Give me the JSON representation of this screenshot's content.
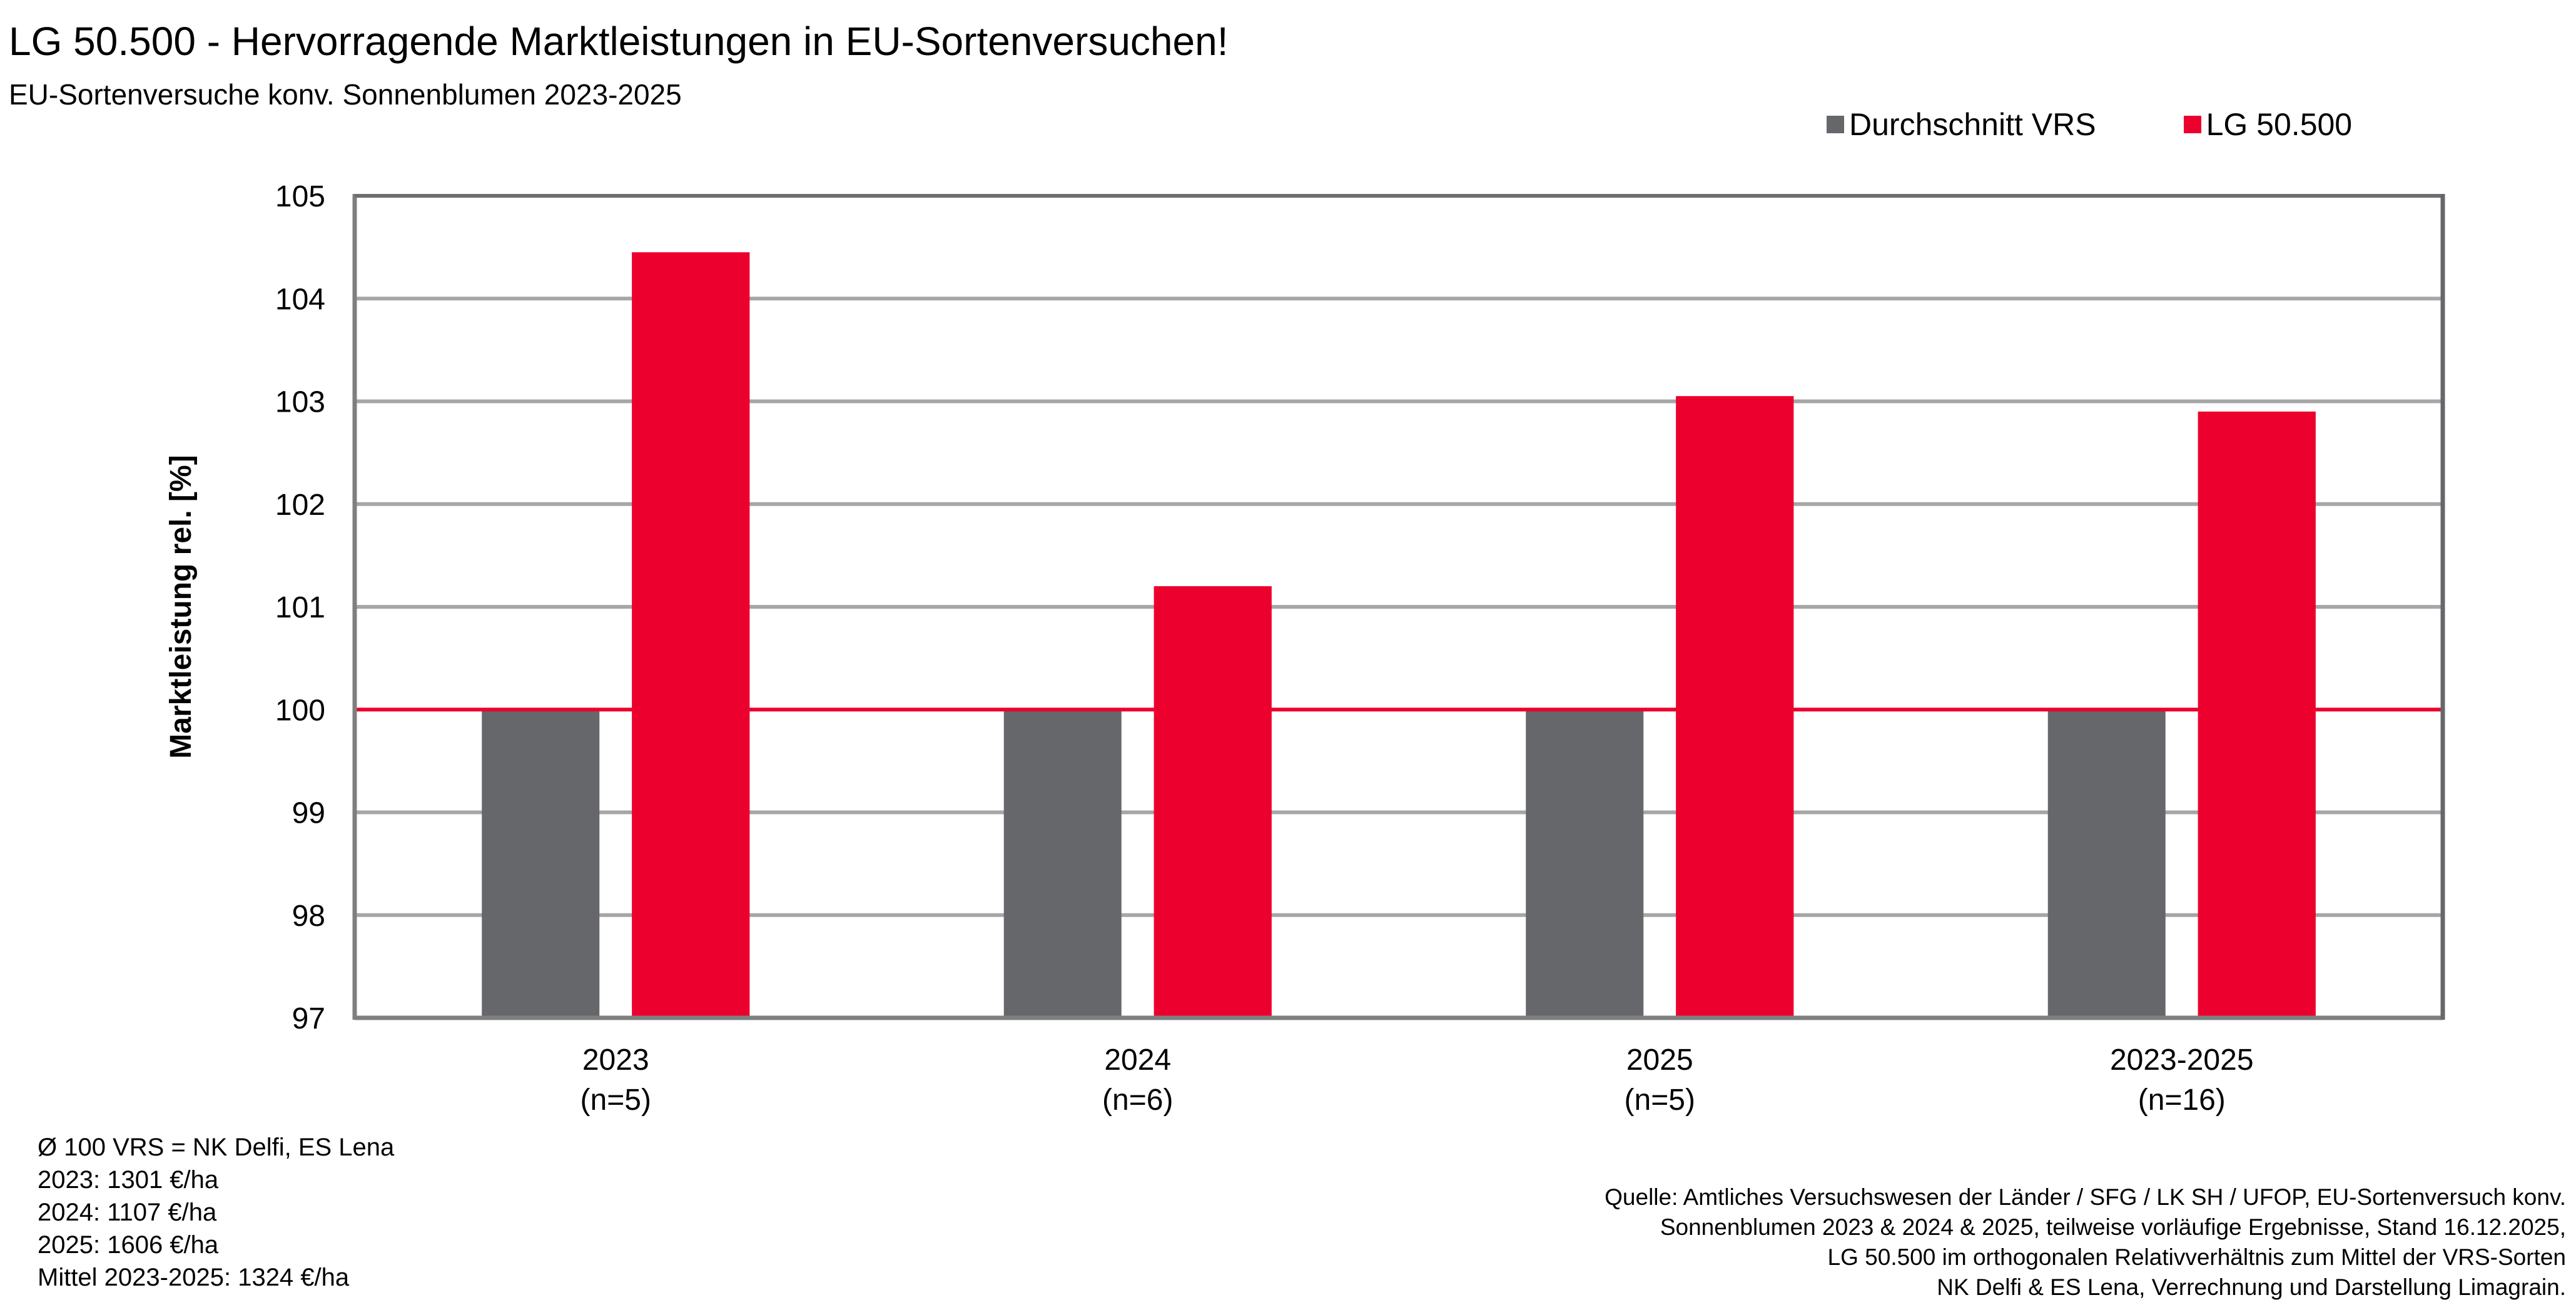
{
  "header": {
    "title": "LG 50.500 - Hervorragende Marktleistungen in EU-Sortenversuchen!",
    "subtitle": "EU-Sortenversuche konv. Sonnenblumen 2023-2025"
  },
  "colors": {
    "vrs": "#66676b",
    "lg": "#ec002d",
    "grid": "#a6a6a6",
    "axis": "#7f7f7f",
    "reference_line": "#ec002d"
  },
  "chart_data": {
    "type": "bar",
    "title": "LG 50.500 - Hervorragende Marktleistungen in EU-Sortenversuchen!",
    "subtitle": "EU-Sortenversuche konv. Sonnenblumen 2023-2025",
    "xlabel": "",
    "ylabel": "Marktleistung rel. [%]",
    "ylim": [
      97,
      105
    ],
    "yticks": [
      97,
      98,
      99,
      100,
      101,
      102,
      103,
      104,
      105
    ],
    "grid": true,
    "reference_line": 100,
    "legend_position": "top-right",
    "categories": [
      "2023",
      "2024",
      "2025",
      "2023-2025"
    ],
    "category_sublabels": [
      "(n=5)",
      "(n=6)",
      "(n=5)",
      "(n=16)"
    ],
    "series": [
      {
        "name": "Durchschnitt VRS",
        "values": [
          100,
          100,
          100,
          100
        ]
      },
      {
        "name": "LG 50.500",
        "values": [
          104.45,
          101.2,
          103.05,
          102.9
        ]
      }
    ]
  },
  "notes": {
    "left": [
      "Ø 100 VRS = NK Delfi, ES Lena",
      "2023: 1301 €/ha",
      "2024: 1107 €/ha",
      "2025: 1606 €/ha",
      "Mittel 2023-2025: 1324 €/ha"
    ],
    "source": [
      "Quelle: Amtliches Versuchswesen der Länder / SFG / LK SH / UFOP, EU-Sortenversuch konv.",
      "Sonnenblumen 2023 & 2024 & 2025, teilweise vorläufige Ergebnisse, Stand 16.12.2025,",
      "LG 50.500 im orthogonalen Relativverhältnis zum Mittel der VRS-Sorten",
      "NK Delfi & ES Lena, Verrechnung und Darstellung Limagrain."
    ]
  }
}
